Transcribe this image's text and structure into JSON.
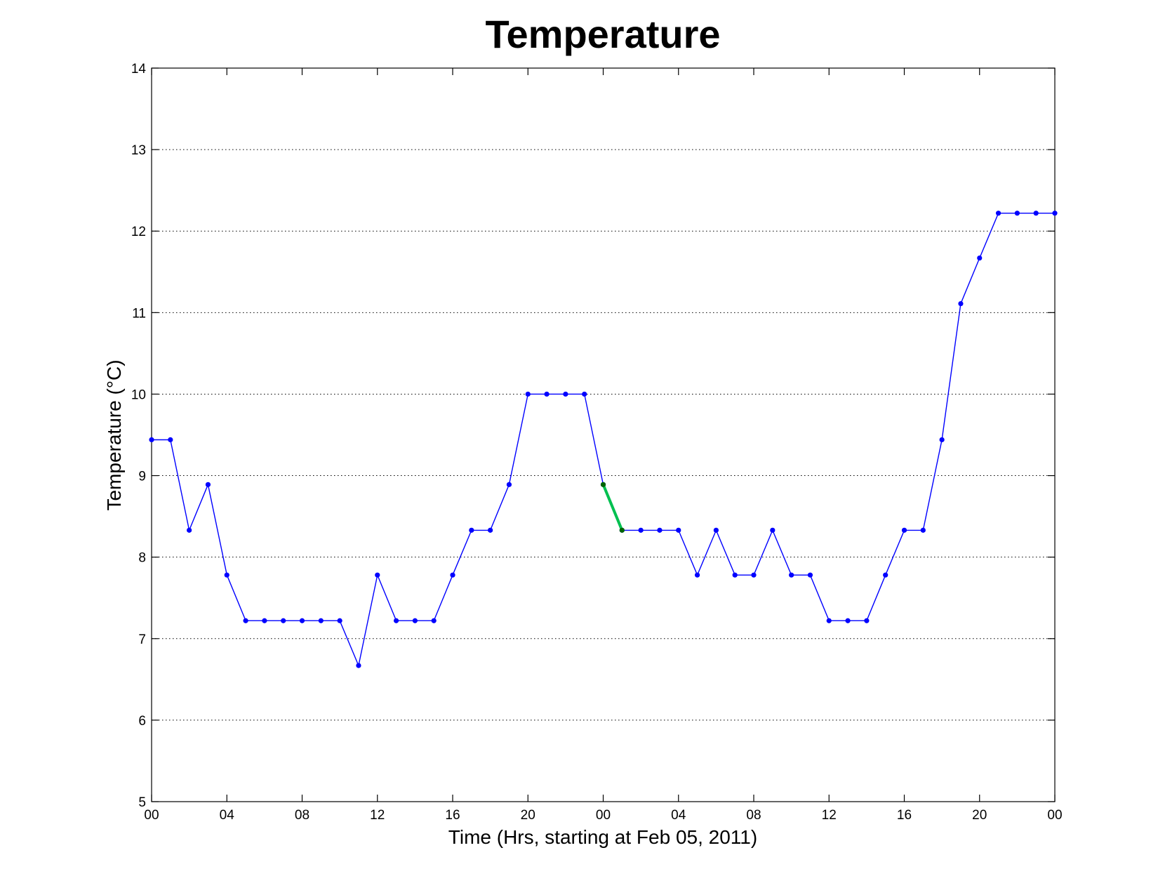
{
  "chart_data": {
    "type": "line",
    "title": "Temperature",
    "xlabel": "Time (Hrs, starting at Feb 05, 2011)",
    "ylabel": "Temperature (°C)",
    "xlim": [
      0,
      48
    ],
    "ylim": [
      5,
      14
    ],
    "x_ticks": [
      0,
      4,
      8,
      12,
      16,
      20,
      24,
      28,
      32,
      36,
      40,
      44,
      48
    ],
    "x_tick_labels": [
      "00",
      "04",
      "08",
      "12",
      "16",
      "20",
      "00",
      "04",
      "08",
      "12",
      "16",
      "20",
      "00"
    ],
    "y_ticks": [
      5,
      6,
      7,
      8,
      9,
      10,
      11,
      12,
      13,
      14
    ],
    "y_tick_labels": [
      "5",
      "6",
      "7",
      "8",
      "9",
      "10",
      "11",
      "12",
      "13",
      "14"
    ],
    "grid": "horizontal dotted",
    "x": [
      0,
      1,
      2,
      3,
      4,
      5,
      6,
      7,
      8,
      9,
      10,
      11,
      12,
      13,
      14,
      15,
      16,
      17,
      18,
      19,
      20,
      21,
      22,
      23,
      24,
      25,
      26,
      27,
      28,
      29,
      30,
      31,
      32,
      33,
      34,
      35,
      36,
      37,
      38,
      39,
      40,
      41,
      42,
      43,
      44,
      45,
      46,
      47,
      48
    ],
    "series": [
      {
        "color": "#0000ff",
        "values": [
          9.44,
          9.44,
          8.33,
          8.89,
          7.78,
          7.22,
          7.22,
          7.22,
          7.22,
          7.22,
          7.22,
          6.67,
          7.78,
          7.22,
          7.22,
          7.22,
          7.78,
          8.33,
          8.33,
          8.89,
          10.0,
          10.0,
          10.0,
          10.0,
          8.89,
          8.33,
          8.33,
          8.33,
          8.33,
          7.78,
          8.33,
          7.78,
          7.78,
          8.33,
          7.78,
          7.78,
          7.22,
          7.22,
          7.22,
          7.78,
          8.33,
          8.33,
          9.44,
          11.11,
          11.67,
          12.22,
          12.22,
          12.22,
          12.22
        ]
      }
    ],
    "highlight_segment": {
      "x": [
        24,
        25
      ],
      "values": [
        8.89,
        8.33
      ],
      "color": "#00c050",
      "marker_color": "#006400"
    }
  }
}
